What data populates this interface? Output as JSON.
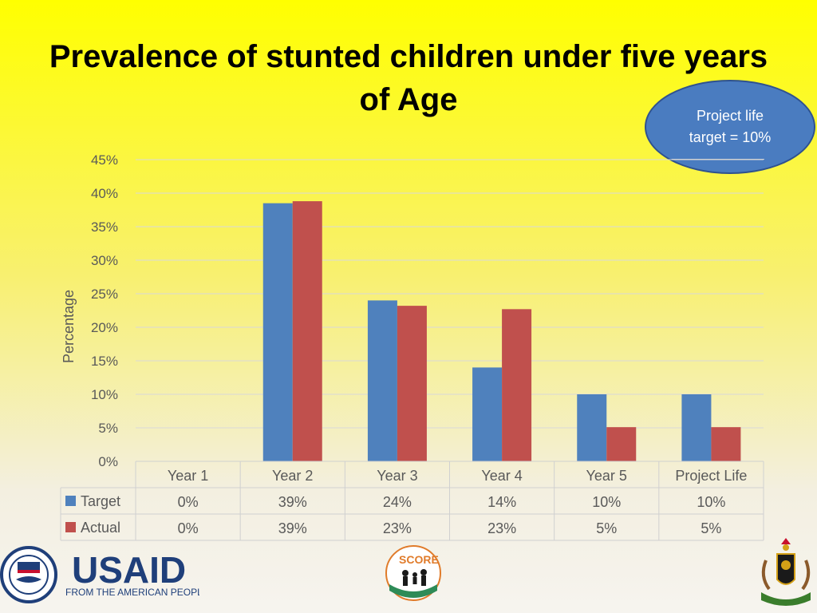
{
  "slide": {
    "title": "Prevalence of stunted children under five years of Age",
    "callout_line1": "Project life",
    "callout_line2": "target = 10%"
  },
  "chart_data": {
    "type": "bar",
    "ylabel": "Percentage",
    "ylim": [
      0,
      45
    ],
    "ytick_step": 5,
    "ytick_labels": [
      "0%",
      "5%",
      "10%",
      "15%",
      "20%",
      "25%",
      "30%",
      "35%",
      "40%",
      "45%"
    ],
    "grid": true,
    "categories": [
      "Year 1",
      "Year 2",
      "Year 3",
      "Year 4",
      "Year 5",
      "Project Life"
    ],
    "series": [
      {
        "name": "Target",
        "color": "#4f81bd",
        "values": [
          0,
          38.5,
          24,
          14,
          10,
          10
        ],
        "table_labels": [
          "0%",
          "39%",
          "24%",
          "14%",
          "10%",
          "10%"
        ]
      },
      {
        "name": "Actual",
        "color": "#c0504d",
        "values": [
          0,
          38.8,
          23.2,
          22.7,
          5.1,
          5.1
        ],
        "table_labels": [
          "0%",
          "39%",
          "23%",
          "23%",
          "5%",
          "5%"
        ]
      }
    ],
    "data_table": true
  },
  "logos": {
    "usaid_word": "USAID",
    "usaid_tagline": "FROM THE AMERICAN PEOPLE",
    "score_word": "SCORE"
  }
}
